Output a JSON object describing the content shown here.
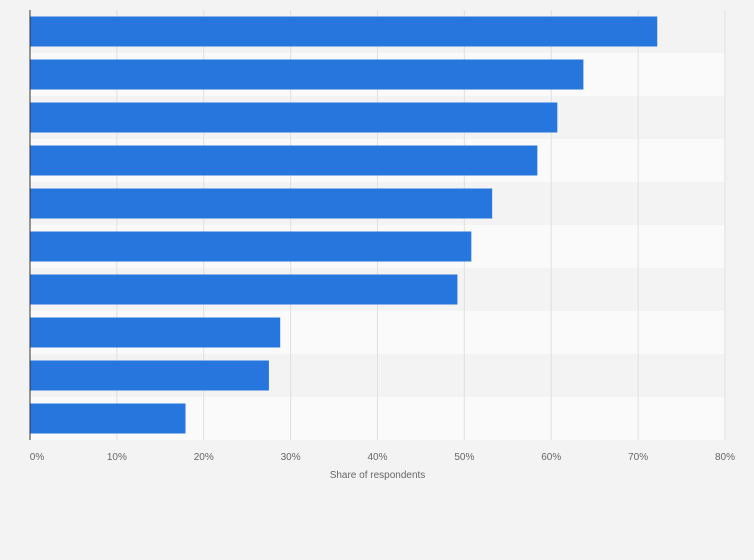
{
  "chart_data": {
    "type": "bar",
    "orientation": "horizontal",
    "categories": [
      "",
      "",
      "",
      "",
      "",
      "",
      "",
      "",
      "",
      ""
    ],
    "values": [
      72.2,
      63.7,
      60.7,
      58.4,
      53.2,
      50.8,
      49.2,
      28.8,
      27.5,
      17.9
    ],
    "xlabel": "Share of respondents",
    "ylabel": "",
    "xlim": [
      0,
      80
    ],
    "x_ticks": [
      0,
      10,
      20,
      30,
      40,
      50,
      60,
      70,
      80
    ],
    "x_tick_labels": [
      "0%",
      "10%",
      "20%",
      "30%",
      "40%",
      "50%",
      "60%",
      "70%",
      "80%"
    ],
    "grid": true,
    "bar_color": "#2776dd"
  }
}
